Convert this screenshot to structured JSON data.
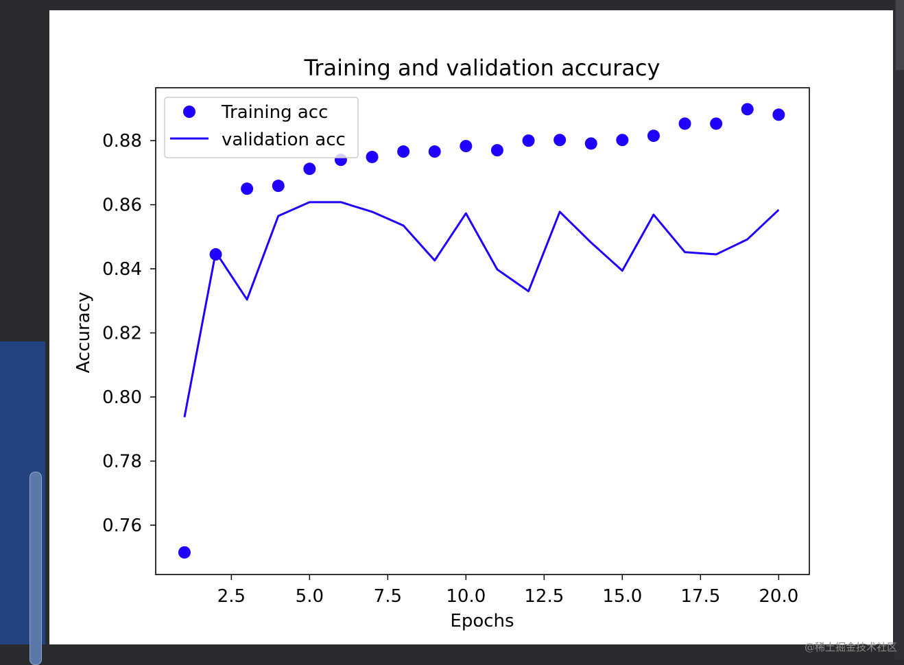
{
  "chart_data": {
    "type": "line",
    "title": "Training and validation accuracy",
    "xlabel": "Epochs",
    "ylabel": "Accuracy",
    "xlim": [
      0.08,
      20.98
    ],
    "ylim": [
      0.7446,
      0.8965
    ],
    "xticks": [
      2.5,
      5.0,
      7.5,
      10.0,
      12.5,
      15.0,
      17.5,
      20.0
    ],
    "xtick_labels": [
      "2.5",
      "5.0",
      "7.5",
      "10.0",
      "12.5",
      "15.0",
      "17.5",
      "20.0"
    ],
    "yticks": [
      0.76,
      0.78,
      0.8,
      0.82,
      0.84,
      0.86,
      0.88
    ],
    "ytick_labels": [
      "0.76",
      "0.78",
      "0.80",
      "0.82",
      "0.84",
      "0.86",
      "0.88"
    ],
    "grid": false,
    "legend_position": "top-left",
    "x": [
      1,
      2,
      3,
      4,
      5,
      6,
      7,
      8,
      9,
      10,
      11,
      12,
      13,
      14,
      15,
      16,
      17,
      18,
      19,
      20
    ],
    "series": [
      {
        "name": "Training acc",
        "style": "dots",
        "color": "#1f00ff",
        "values": [
          0.7515,
          0.8445,
          0.865,
          0.8659,
          0.8712,
          0.874,
          0.8749,
          0.8766,
          0.8766,
          0.8783,
          0.877,
          0.88,
          0.8802,
          0.8791,
          0.8802,
          0.8815,
          0.8853,
          0.8853,
          0.8898,
          0.8881
        ]
      },
      {
        "name": "validation acc",
        "style": "line",
        "color": "#1f00ff",
        "values": [
          0.7937,
          0.8452,
          0.8304,
          0.8565,
          0.8608,
          0.8608,
          0.8578,
          0.8535,
          0.8426,
          0.8573,
          0.8398,
          0.833,
          0.8578,
          0.8482,
          0.8394,
          0.8569,
          0.8452,
          0.8445,
          0.8492,
          0.8584
        ]
      }
    ]
  },
  "watermark": "@稀土掘金技术社区"
}
